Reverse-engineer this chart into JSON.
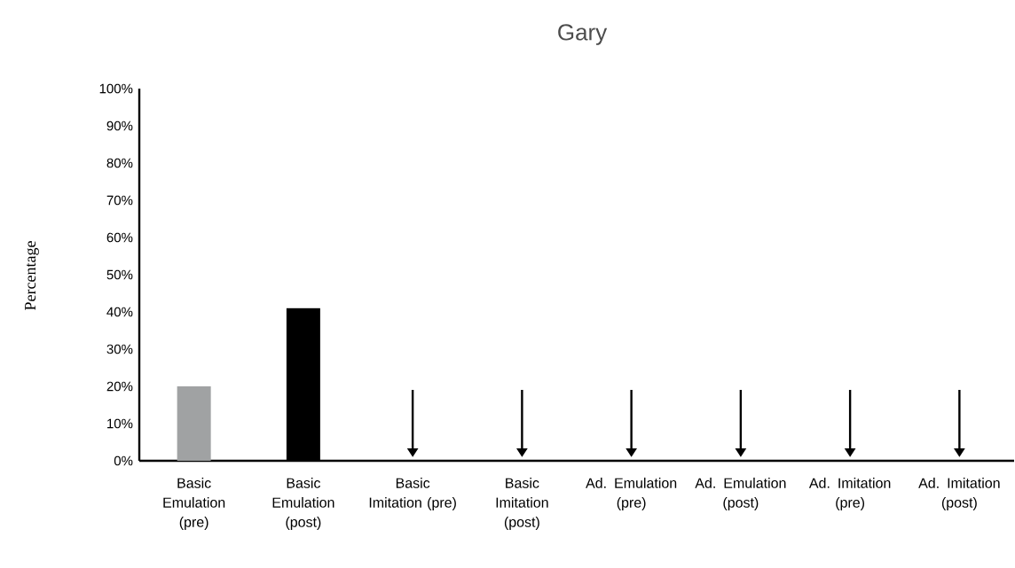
{
  "chart_data": {
    "type": "bar",
    "title": "Gary",
    "ylabel": "Percentage",
    "categories": [
      "Basic Emulation (pre)",
      "Basic Emulation (post)",
      "Basic Imitation (pre)",
      "Basic Imitation (post)",
      "Ad. Emulation (pre)",
      "Ad. Emulation (post)",
      "Ad. Imitation (pre)",
      "Ad. Imitation (post)"
    ],
    "values": [
      20,
      41,
      0,
      0,
      0,
      0,
      0,
      0
    ],
    "colors": [
      "#a0a2a3",
      "#000000",
      "#000000",
      "#000000",
      "#000000",
      "#000000",
      "#000000",
      "#000000"
    ],
    "ylim": [
      0,
      100
    ],
    "yticks": [
      {
        "value": 0,
        "label": "0%"
      },
      {
        "value": 10,
        "label": "10%"
      },
      {
        "value": 20,
        "label": "20%"
      },
      {
        "value": 30,
        "label": "30%"
      },
      {
        "value": 40,
        "label": "40%"
      },
      {
        "value": 50,
        "label": "50%"
      },
      {
        "value": 60,
        "label": "60%"
      },
      {
        "value": 70,
        "label": "70%"
      },
      {
        "value": 80,
        "label": "80%"
      },
      {
        "value": 90,
        "label": "90%"
      },
      {
        "value": 100,
        "label": "100%"
      }
    ],
    "grid": false
  }
}
